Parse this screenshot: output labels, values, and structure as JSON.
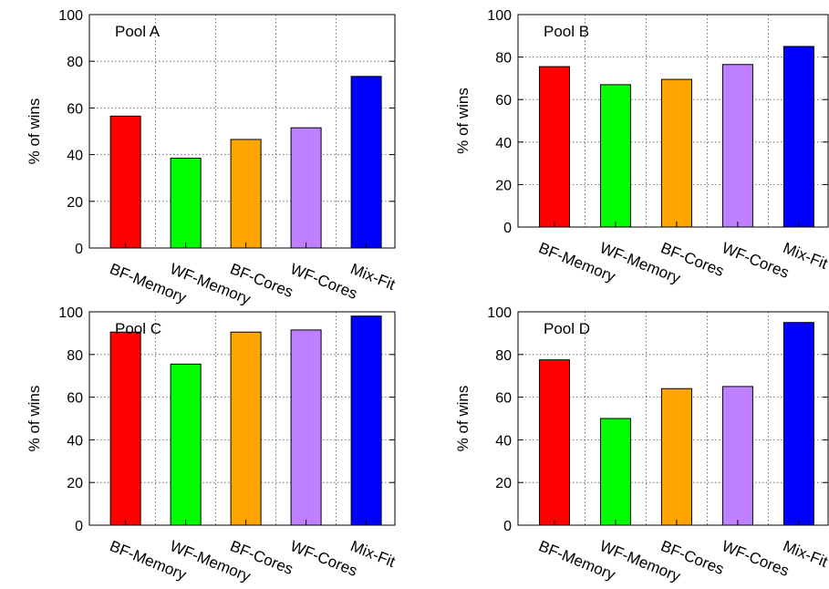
{
  "chart_data": [
    {
      "type": "bar",
      "title": "Pool A",
      "xlabel": "",
      "ylabel": "% of wins",
      "ylim": [
        0,
        100
      ],
      "yticks": [
        0,
        20,
        40,
        60,
        80,
        100
      ],
      "grid": true,
      "categories": [
        "BF-Memory",
        "WF-Memory",
        "BF-Cores",
        "WF-Cores",
        "Mix-Fit"
      ],
      "values": [
        56.5,
        38.5,
        46.5,
        51.5,
        73.5
      ],
      "colors": [
        "#ff0000",
        "#00ff00",
        "#ffa500",
        "#bf80ff",
        "#0000ff"
      ]
    },
    {
      "type": "bar",
      "title": "Pool B",
      "xlabel": "",
      "ylabel": "% of wins",
      "ylim": [
        0,
        100
      ],
      "yticks": [
        0,
        20,
        40,
        60,
        80,
        100
      ],
      "grid": true,
      "categories": [
        "BF-Memory",
        "WF-Memory",
        "BF-Cores",
        "WF-Cores",
        "Mix-Fit"
      ],
      "values": [
        75.5,
        67,
        69.5,
        76.5,
        85
      ],
      "colors": [
        "#ff0000",
        "#00ff00",
        "#ffa500",
        "#bf80ff",
        "#0000ff"
      ]
    },
    {
      "type": "bar",
      "title": "Pool C",
      "xlabel": "",
      "ylabel": "% of wins",
      "ylim": [
        0,
        100
      ],
      "yticks": [
        0,
        20,
        40,
        60,
        80,
        100
      ],
      "grid": true,
      "categories": [
        "BF-Memory",
        "WF-Memory",
        "BF-Cores",
        "WF-Cores",
        "Mix-Fit"
      ],
      "values": [
        90.5,
        75.5,
        90.5,
        91.5,
        98
      ],
      "colors": [
        "#ff0000",
        "#00ff00",
        "#ffa500",
        "#bf80ff",
        "#0000ff"
      ]
    },
    {
      "type": "bar",
      "title": "Pool D",
      "xlabel": "",
      "ylabel": "% of wins",
      "ylim": [
        0,
        100
      ],
      "yticks": [
        0,
        20,
        40,
        60,
        80,
        100
      ],
      "grid": true,
      "categories": [
        "BF-Memory",
        "WF-Memory",
        "BF-Cores",
        "WF-Cores",
        "Mix-Fit"
      ],
      "values": [
        77.5,
        50,
        64,
        65,
        95
      ],
      "colors": [
        "#ff0000",
        "#00ff00",
        "#ffa500",
        "#bf80ff",
        "#0000ff"
      ]
    }
  ]
}
